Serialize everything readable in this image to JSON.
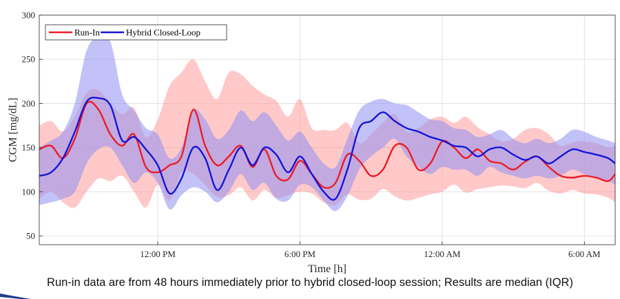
{
  "caption": "Run-in data are from 48 hours immediately prior to hybrid closed-loop session; Results are median (IQR)",
  "chart_data": {
    "type": "line",
    "title": "",
    "xlabel": "Time [h]",
    "ylabel": "CGM [mg/dL]",
    "xlim": [
      7.0,
      31.3
    ],
    "ylim": [
      40,
      300
    ],
    "x_unit": "hours since midnight (day 1)",
    "x_ticks": [
      {
        "x": 12,
        "label": "12:00 PM"
      },
      {
        "x": 18,
        "label": "6:00 PM"
      },
      {
        "x": 24,
        "label": "12:00 AM"
      },
      {
        "x": 30,
        "label": "6:00 AM"
      }
    ],
    "y_ticks": [
      50,
      100,
      150,
      200,
      250,
      300
    ],
    "grid": true,
    "legend_position": "top-left",
    "x": [
      7.0,
      7.5,
      8.0,
      8.5,
      9.0,
      9.5,
      10.0,
      10.5,
      11.0,
      11.5,
      12.0,
      12.5,
      13.0,
      13.5,
      14.0,
      14.5,
      15.0,
      15.5,
      16.0,
      16.5,
      17.0,
      17.5,
      18.0,
      18.5,
      19.0,
      19.5,
      20.0,
      20.5,
      21.0,
      21.5,
      22.0,
      22.5,
      23.0,
      23.5,
      24.0,
      24.5,
      25.0,
      25.5,
      26.0,
      26.5,
      27.0,
      27.5,
      28.0,
      28.5,
      29.0,
      29.5,
      30.0,
      30.5,
      31.0,
      31.3
    ],
    "series": [
      {
        "name": "Run-In",
        "color": "#ee1c25",
        "band_color": "#ff9c9c",
        "median": [
          148,
          152,
          138,
          160,
          200,
          193,
          165,
          152,
          165,
          128,
          122,
          130,
          140,
          193,
          152,
          130,
          140,
          152,
          128,
          148,
          118,
          114,
          135,
          120,
          105,
          110,
          142,
          135,
          118,
          125,
          152,
          150,
          125,
          132,
          157,
          150,
          138,
          148,
          135,
          132,
          125,
          134,
          140,
          128,
          118,
          116,
          118,
          116,
          112,
          120
        ],
        "q1": [
          92,
          100,
          88,
          82,
          100,
          115,
          112,
          118,
          100,
          82,
          108,
          90,
          122,
          120,
          108,
          94,
          96,
          105,
          90,
          102,
          93,
          96,
          100,
          98,
          88,
          85,
          97,
          91,
          92,
          103,
          95,
          90,
          93,
          97,
          100,
          108,
          99,
          103,
          105,
          107,
          106,
          104,
          110,
          101,
          98,
          102,
          98,
          97,
          93,
          88
        ],
        "q3": [
          175,
          180,
          168,
          185,
          212,
          215,
          200,
          188,
          195,
          162,
          182,
          220,
          235,
          250,
          225,
          205,
          235,
          233,
          220,
          210,
          203,
          185,
          205,
          172,
          170,
          170,
          178,
          155,
          165,
          178,
          188,
          168,
          172,
          182,
          185,
          178,
          185,
          173,
          165,
          157,
          160,
          170,
          172,
          165,
          152,
          156,
          157,
          155,
          150,
          152
        ]
      },
      {
        "name": "Hybrid Closed-Loop",
        "color": "#1515d8",
        "band_color": "#8f8ff2",
        "median": [
          118,
          122,
          138,
          168,
          202,
          206,
          198,
          158,
          162,
          148,
          130,
          98,
          115,
          150,
          138,
          102,
          125,
          150,
          130,
          150,
          142,
          122,
          140,
          120,
          100,
          92,
          125,
          172,
          180,
          190,
          180,
          172,
          168,
          162,
          158,
          152,
          150,
          140,
          148,
          150,
          142,
          136,
          140,
          132,
          140,
          148,
          145,
          142,
          138,
          132
        ],
        "q1": [
          85,
          88,
          92,
          100,
          132,
          148,
          150,
          130,
          110,
          122,
          110,
          80,
          96,
          105,
          100,
          88,
          100,
          120,
          102,
          110,
          92,
          90,
          108,
          105,
          90,
          78,
          95,
          125,
          140,
          150,
          160,
          140,
          128,
          120,
          128,
          125,
          125,
          118,
          128,
          122,
          118,
          115,
          118,
          115,
          118,
          125,
          120,
          115,
          112,
          108
        ],
        "q3": [
          150,
          158,
          168,
          200,
          260,
          275,
          270,
          210,
          192,
          172,
          165,
          138,
          150,
          192,
          182,
          160,
          170,
          192,
          180,
          190,
          175,
          158,
          168,
          150,
          132,
          128,
          160,
          192,
          202,
          205,
          200,
          198,
          190,
          182,
          180,
          172,
          170,
          162,
          165,
          170,
          160,
          155,
          160,
          155,
          160,
          170,
          168,
          162,
          158,
          155
        ]
      }
    ]
  }
}
